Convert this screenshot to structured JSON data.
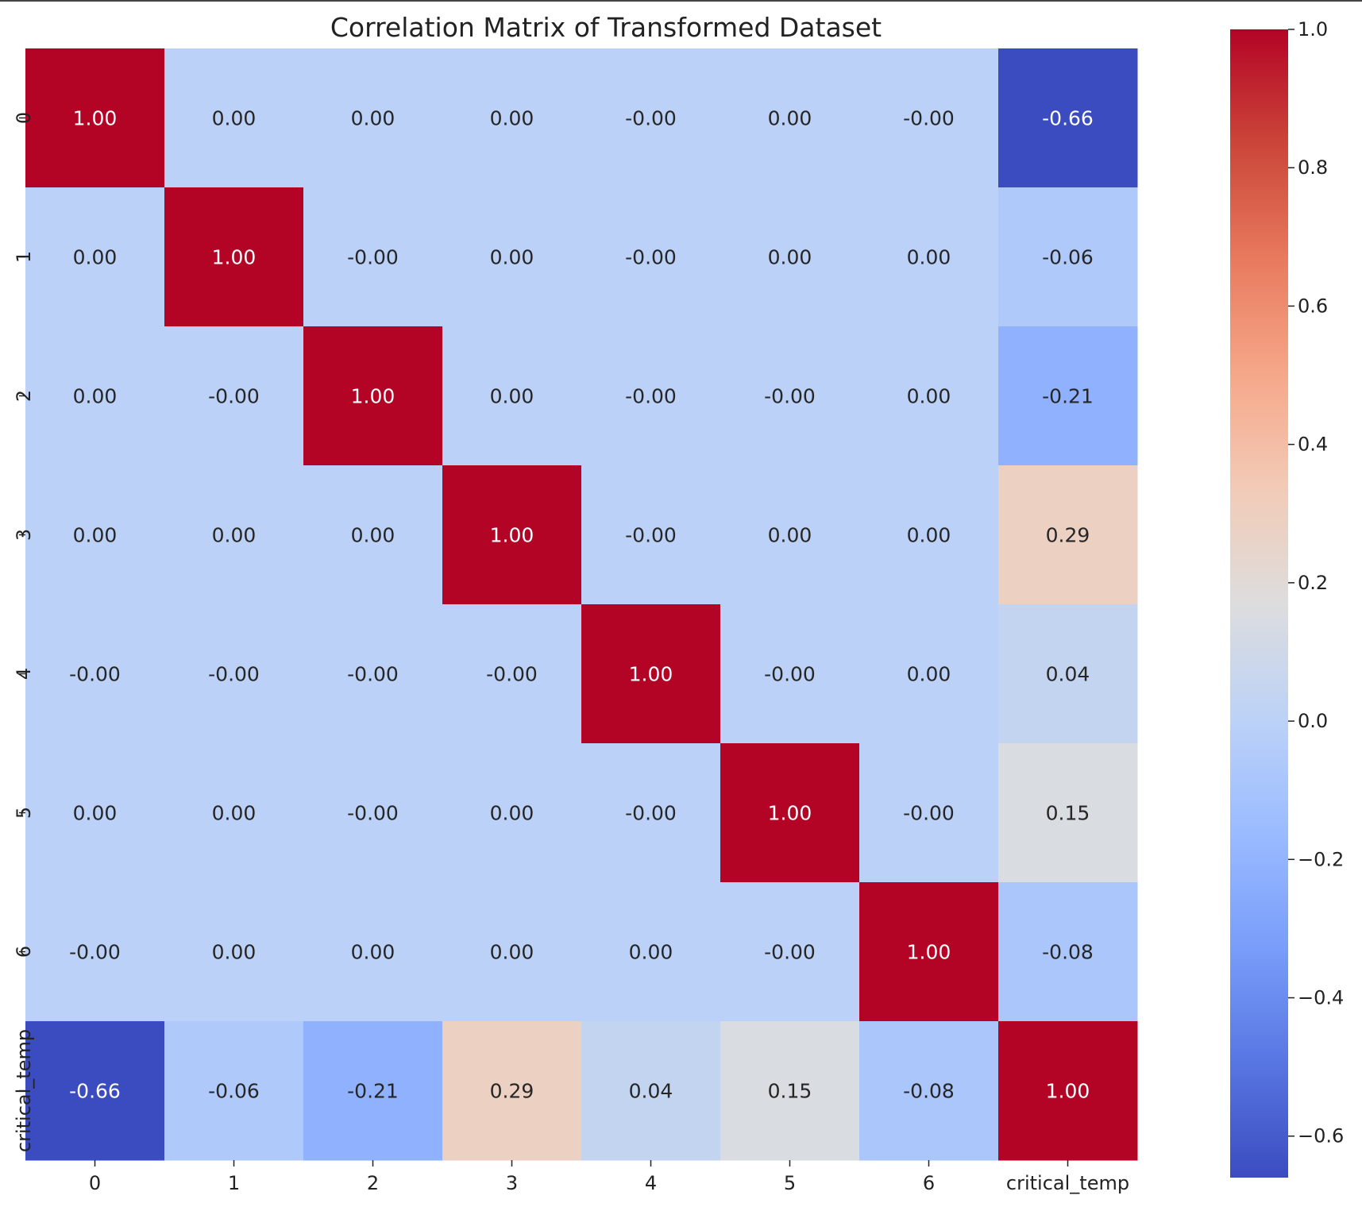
{
  "chart_data": {
    "type": "heatmap",
    "title": "Correlation Matrix of Transformed Dataset",
    "xlabel": "",
    "ylabel": "",
    "x_categories": [
      "0",
      "1",
      "2",
      "3",
      "4",
      "5",
      "6",
      "critical_temp"
    ],
    "y_categories": [
      "0",
      "1",
      "2",
      "3",
      "4",
      "5",
      "6",
      "critical_temp"
    ],
    "value_labels": [
      [
        "1.00",
        "0.00",
        "0.00",
        "0.00",
        "-0.00",
        "0.00",
        "-0.00",
        "-0.66"
      ],
      [
        "0.00",
        "1.00",
        "-0.00",
        "0.00",
        "-0.00",
        "0.00",
        "0.00",
        "-0.06"
      ],
      [
        "0.00",
        "-0.00",
        "1.00",
        "0.00",
        "-0.00",
        "-0.00",
        "0.00",
        "-0.21"
      ],
      [
        "0.00",
        "0.00",
        "0.00",
        "1.00",
        "-0.00",
        "0.00",
        "0.00",
        "0.29"
      ],
      [
        "-0.00",
        "-0.00",
        "-0.00",
        "-0.00",
        "1.00",
        "-0.00",
        "0.00",
        "0.04"
      ],
      [
        "0.00",
        "0.00",
        "-0.00",
        "0.00",
        "-0.00",
        "1.00",
        "-0.00",
        "0.15"
      ],
      [
        "-0.00",
        "0.00",
        "0.00",
        "0.00",
        "0.00",
        "-0.00",
        "1.00",
        "-0.08"
      ],
      [
        "-0.66",
        "-0.06",
        "-0.21",
        "0.29",
        "0.04",
        "0.15",
        "-0.08",
        "1.00"
      ]
    ],
    "colormap": "coolwarm",
    "colorbar": {
      "range": [
        -0.66,
        1.0
      ],
      "ticks": [
        1.0,
        0.8,
        0.6,
        0.4,
        0.2,
        0.0,
        -0.2,
        -0.4,
        -0.6
      ],
      "tick_labels": [
        "1.0",
        "0.8",
        "0.6",
        "0.4",
        "0.2",
        "0.0",
        "−0.2",
        "−0.4",
        "−0.6"
      ]
    },
    "annotation_light_color": "#ffffff",
    "annotation_dark_color": "#262626"
  }
}
